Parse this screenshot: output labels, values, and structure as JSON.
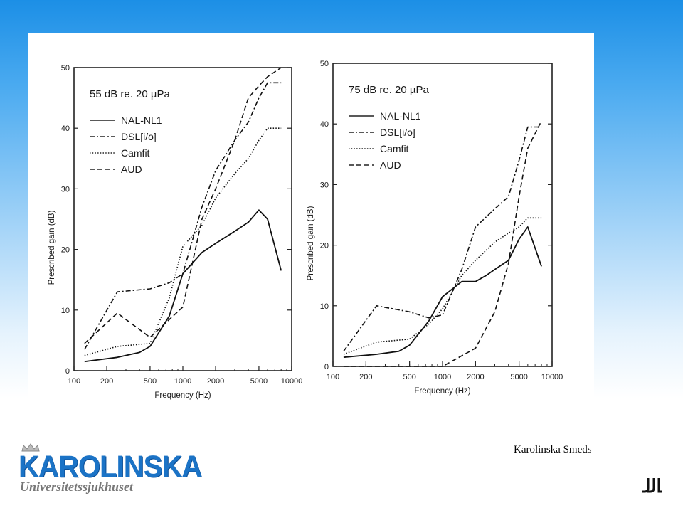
{
  "footer": {
    "author": "Karolinska Smeds",
    "logo_text": "KAROLINSKA",
    "logo_subtitle": "Universitetssjukhuset"
  },
  "chart_data": [
    {
      "type": "line",
      "annotation": "55 dB re. 20 µPa",
      "xlabel": "Frequency (Hz)",
      "ylabel": "Prescribed gain (dB)",
      "xscale": "log",
      "xlim": [
        100,
        10000
      ],
      "ylim": [
        0,
        50
      ],
      "xticks": [
        100,
        200,
        500,
        1000,
        2000,
        5000,
        10000
      ],
      "yticks": [
        0,
        10,
        20,
        30,
        40,
        50
      ],
      "grid": false,
      "legend_position": "top-left",
      "series": [
        {
          "name": "NAL-NL1",
          "style": "solid",
          "x": [
            125,
            250,
            400,
            500,
            750,
            1000,
            1500,
            2000,
            3000,
            4000,
            5000,
            6000,
            8000
          ],
          "y": [
            1.5,
            2.2,
            3,
            4,
            9,
            16,
            19.5,
            21,
            23,
            24.5,
            26.5,
            25,
            16.5
          ]
        },
        {
          "name": "DSL[i/o]",
          "style": "dashdot",
          "x": [
            125,
            250,
            500,
            750,
            1000,
            1500,
            2000,
            3000,
            4000,
            5000,
            6000,
            8000
          ],
          "y": [
            3.5,
            13,
            13.5,
            14.5,
            16,
            27,
            33,
            38,
            41,
            45,
            47.5,
            47.5
          ]
        },
        {
          "name": "Camfit",
          "style": "dotted",
          "x": [
            125,
            250,
            500,
            750,
            1000,
            1500,
            2000,
            3000,
            4000,
            5000,
            6000,
            8000
          ],
          "y": [
            2.5,
            4,
            4.5,
            12,
            20.5,
            24,
            28.5,
            32.5,
            35,
            38,
            40,
            40
          ]
        },
        {
          "name": "AUD",
          "style": "dashed",
          "x": [
            125,
            250,
            500,
            1000,
            1500,
            2000,
            3000,
            4000,
            5000,
            6000,
            8000
          ],
          "y": [
            4.5,
            9.5,
            5.5,
            10.5,
            25,
            30,
            38,
            45,
            47,
            48.5,
            50
          ]
        }
      ]
    },
    {
      "type": "line",
      "annotation": "75 dB re. 20 µPa",
      "xlabel": "Frequency (Hz)",
      "ylabel": "Prescribed gain (dB)",
      "xscale": "log",
      "xlim": [
        100,
        10000
      ],
      "ylim": [
        0,
        50
      ],
      "xticks": [
        100,
        200,
        500,
        1000,
        2000,
        5000,
        10000
      ],
      "yticks": [
        0,
        10,
        20,
        30,
        40,
        50
      ],
      "grid": false,
      "legend_position": "top-left",
      "series": [
        {
          "name": "NAL-NL1",
          "style": "solid",
          "x": [
            125,
            250,
            400,
            500,
            750,
            1000,
            1500,
            2000,
            2500,
            3000,
            4000,
            5000,
            6000,
            8000
          ],
          "y": [
            1.5,
            2,
            2.5,
            3.5,
            7.5,
            11.5,
            14,
            14,
            15,
            16,
            17.5,
            21,
            23,
            16.5
          ]
        },
        {
          "name": "DSL[i/o]",
          "style": "dashdot",
          "x": [
            125,
            250,
            500,
            750,
            1000,
            1500,
            2000,
            3000,
            4000,
            5000,
            6000,
            8000
          ],
          "y": [
            2.5,
            10,
            9,
            8,
            8.5,
            16,
            23,
            26,
            28,
            34,
            39.5,
            39.5
          ]
        },
        {
          "name": "Camfit",
          "style": "dotted",
          "x": [
            125,
            250,
            500,
            750,
            1000,
            1500,
            2000,
            3000,
            4000,
            5000,
            6000,
            8000
          ],
          "y": [
            2,
            4,
            4.5,
            7,
            9.5,
            15,
            17.5,
            20.5,
            22,
            23,
            24.5,
            24.5
          ]
        },
        {
          "name": "AUD",
          "style": "dashed",
          "x": [
            125,
            500,
            1000,
            2000,
            3000,
            4000,
            5000,
            6000,
            8000
          ],
          "y": [
            0,
            0,
            0,
            3,
            9,
            17,
            28,
            36,
            40.5
          ]
        }
      ]
    }
  ]
}
